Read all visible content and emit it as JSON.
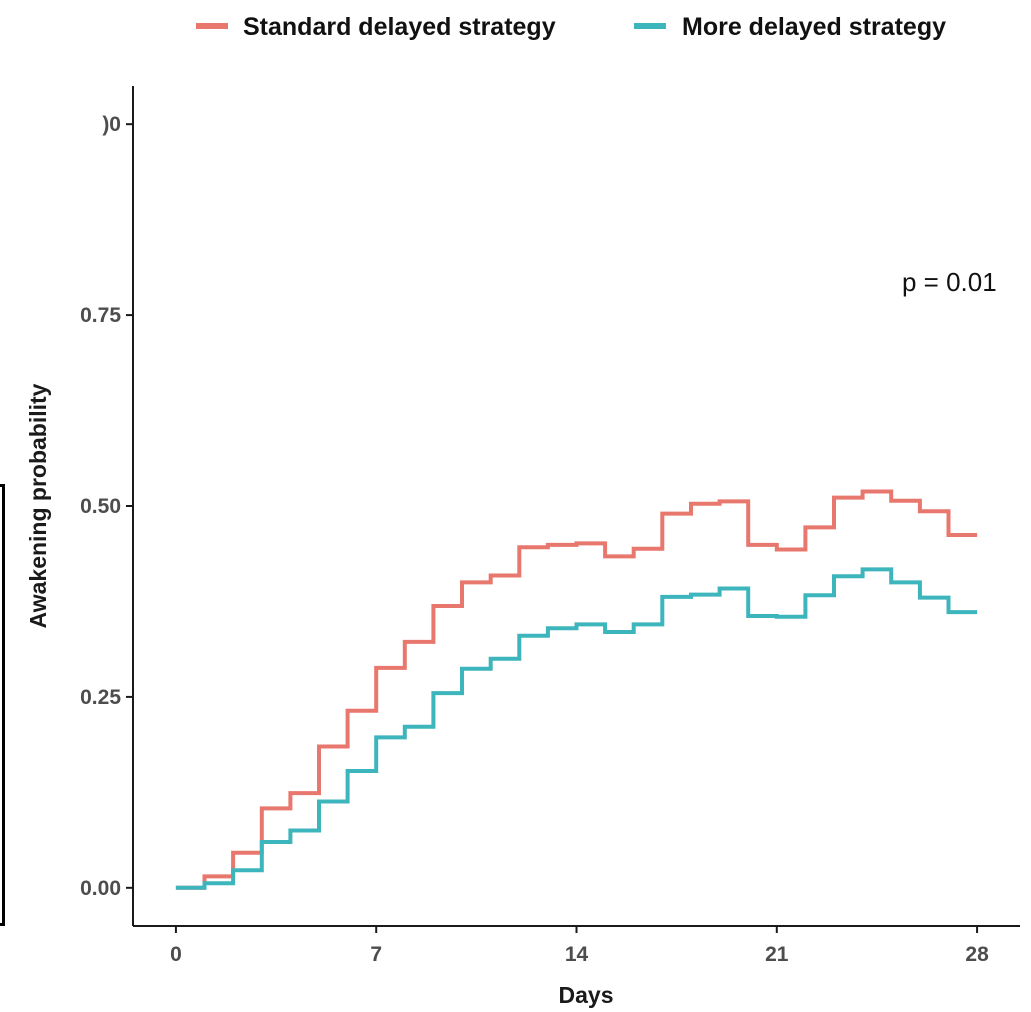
{
  "chart_data": {
    "type": "line",
    "step": true,
    "xlabel": "Days",
    "ylabel": "Awakening probability",
    "xlim": [
      -1.5,
      29.5
    ],
    "ylim": [
      -0.05,
      1.05
    ],
    "x_ticks": [
      0,
      7,
      14,
      21,
      28
    ],
    "x_tick_labels": [
      "0",
      "7",
      "14",
      "21",
      "28"
    ],
    "y_ticks": [
      0,
      0.25,
      0.5,
      0.75,
      1
    ],
    "y_tick_labels": [
      "0.00",
      "0.25",
      "0.50",
      "0.75",
      ")0"
    ],
    "grid": false,
    "legend_position": "top",
    "annotation": "p = 0.01",
    "series": [
      {
        "name": "Standard delayed strategy",
        "color": "#E8776D",
        "x": [
          0,
          1,
          2,
          3,
          4,
          5,
          6,
          7,
          8,
          9,
          10,
          11,
          12,
          13,
          14,
          15,
          16,
          17,
          18,
          19,
          20,
          21,
          22,
          23,
          24,
          25,
          26,
          27,
          28
        ],
        "y": [
          0.0,
          0.015,
          0.046,
          0.104,
          0.124,
          0.185,
          0.232,
          0.288,
          0.322,
          0.369,
          0.4,
          0.409,
          0.446,
          0.449,
          0.451,
          0.434,
          0.444,
          0.49,
          0.503,
          0.506,
          0.449,
          0.443,
          0.472,
          0.511,
          0.519,
          0.507,
          0.493,
          0.462,
          0.462
        ]
      },
      {
        "name": "More delayed strategy",
        "color": "#3DB5BC",
        "x": [
          0,
          1,
          2,
          3,
          4,
          5,
          6,
          7,
          8,
          9,
          10,
          11,
          12,
          13,
          14,
          15,
          16,
          17,
          18,
          19,
          20,
          21,
          22,
          23,
          24,
          25,
          26,
          27,
          28
        ],
        "y": [
          0.0,
          0.006,
          0.023,
          0.06,
          0.075,
          0.113,
          0.153,
          0.197,
          0.211,
          0.255,
          0.287,
          0.3,
          0.33,
          0.34,
          0.345,
          0.335,
          0.345,
          0.381,
          0.384,
          0.392,
          0.356,
          0.355,
          0.383,
          0.408,
          0.417,
          0.4,
          0.38,
          0.361,
          0.361
        ]
      }
    ]
  }
}
